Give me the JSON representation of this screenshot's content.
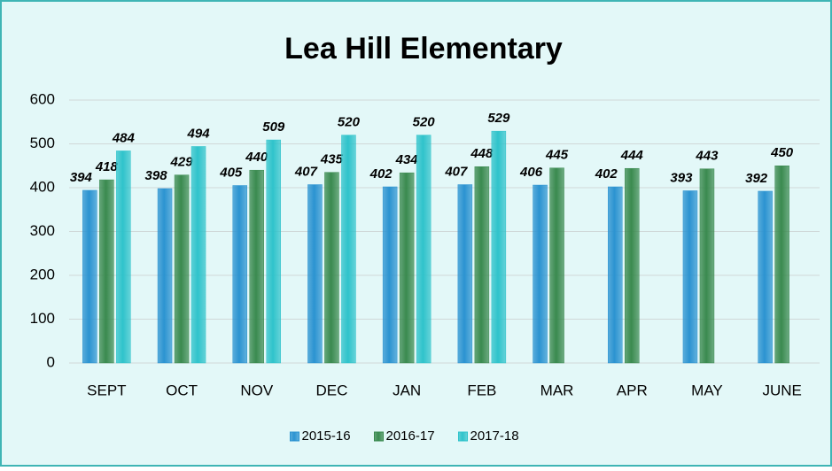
{
  "chart_data": {
    "type": "bar",
    "title": "Lea Hill Elementary",
    "categories": [
      "SEPT",
      "OCT",
      "NOV",
      "DEC",
      "JAN",
      "FEB",
      "MAR",
      "APR",
      "MAY",
      "JUNE"
    ],
    "series": [
      {
        "name": "2015-16",
        "color": "#2b93d1",
        "values": [
          394,
          398,
          405,
          407,
          402,
          407,
          406,
          402,
          393,
          392
        ]
      },
      {
        "name": "2016-17",
        "color": "#3a8a4f",
        "values": [
          418,
          429,
          440,
          435,
          434,
          448,
          445,
          444,
          443,
          450
        ]
      },
      {
        "name": "2017-18",
        "color": "#2fc3cb",
        "values": [
          484,
          494,
          509,
          520,
          520,
          529,
          null,
          null,
          null,
          null
        ]
      }
    ],
    "ylim": [
      0,
      600
    ],
    "yticks": [
      0,
      100,
      200,
      300,
      400,
      500,
      600
    ],
    "grid": true,
    "legend": "bottom"
  }
}
